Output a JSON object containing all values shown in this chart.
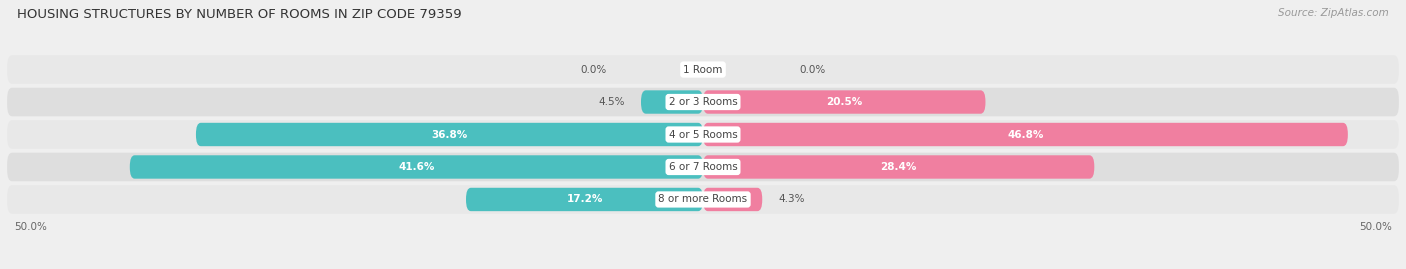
{
  "title": "HOUSING STRUCTURES BY NUMBER OF ROOMS IN ZIP CODE 79359",
  "source": "Source: ZipAtlas.com",
  "categories": [
    "1 Room",
    "2 or 3 Rooms",
    "4 or 5 Rooms",
    "6 or 7 Rooms",
    "8 or more Rooms"
  ],
  "owner_values": [
    0.0,
    4.5,
    36.8,
    41.6,
    17.2
  ],
  "renter_values": [
    0.0,
    20.5,
    46.8,
    28.4,
    4.3
  ],
  "owner_color": "#4BBFBF",
  "renter_color": "#F07FA0",
  "bg_color": "#efefef",
  "bar_bg_color": "#e0e0e0",
  "bar_bg_color2": "#d8d8d8",
  "axis_max": 50.0,
  "figsize": [
    14.06,
    2.69
  ],
  "dpi": 100
}
